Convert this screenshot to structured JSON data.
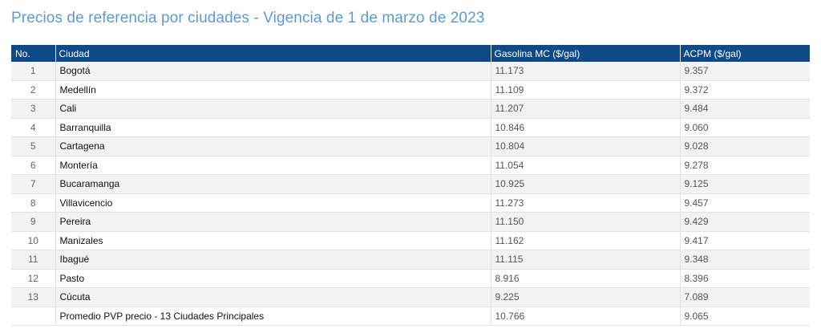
{
  "title": "Precios de referencia por ciudades - Vigencia de 1 de marzo de 2023",
  "headers": [
    "No.",
    "Ciudad",
    "Gasolina MC ($/gal)",
    "ACPM ($/gal)"
  ],
  "rows": [
    [
      "1",
      "Bogotá",
      "11.173",
      "9.357"
    ],
    [
      "2",
      "Medellín",
      "11.109",
      "9.372"
    ],
    [
      "3",
      "Cali",
      "11.207",
      "9.484"
    ],
    [
      "4",
      "Barranquilla",
      "10.846",
      "9.060"
    ],
    [
      "5",
      "Cartagena",
      "10.804",
      "9.028"
    ],
    [
      "6",
      "Montería",
      "11.054",
      "9.278"
    ],
    [
      "7",
      "Bucaramanga",
      "10.925",
      "9.125"
    ],
    [
      "8",
      "Villavicencio",
      "11.273",
      "9.457"
    ],
    [
      "9",
      "Pereira",
      "11.150",
      "9.429"
    ],
    [
      "10",
      "Manizales",
      "11.162",
      "9.417"
    ],
    [
      "11",
      "Ibagué",
      "11.115",
      "9.348"
    ],
    [
      "12",
      "Pasto",
      "8.916",
      "8.396"
    ],
    [
      "13",
      "Cúcuta",
      "9.225",
      "7.089"
    ],
    [
      "",
      "Promedio PVP precio - 13 Ciudades Principales",
      "10.766",
      "9.065"
    ]
  ]
}
